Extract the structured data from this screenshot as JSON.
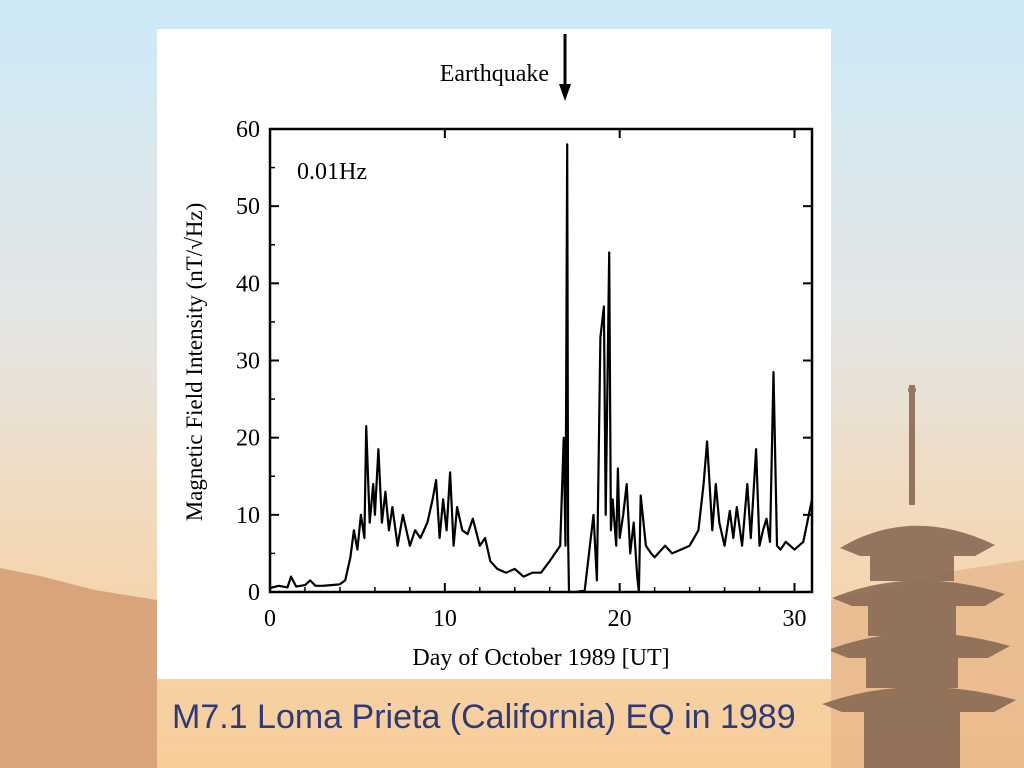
{
  "slide": {
    "caption": "M7.1 Loma Prieta (California) EQ in 1989",
    "colors": {
      "caption": "#2f3a78",
      "mountain": "#d9a47a",
      "pagoda": "#8a6a55",
      "trace": "#000000"
    }
  },
  "chart_data": {
    "type": "line",
    "xlabel": "Day of October 1989 [UT]",
    "ylabel": "Magnetic Field Intensity (nT/√Hz)",
    "frequency_label": "0.01Hz",
    "xlim": [
      0,
      31
    ],
    "ylim": [
      0,
      60
    ],
    "xticks": [
      0,
      10,
      20,
      30
    ],
    "yticks": [
      0,
      10,
      20,
      30,
      40,
      50,
      60
    ],
    "annotation": {
      "label": "Earthquake",
      "x": 17.0,
      "marker": "down-arrow"
    },
    "series": [
      {
        "x": [
          0,
          0.5,
          1,
          1.2,
          1.5,
          2,
          2.3,
          2.6,
          3,
          3.5,
          4,
          4.3,
          4.6,
          4.8,
          5.0,
          5.2,
          5.4,
          5.5,
          5.7,
          5.9,
          6.0,
          6.2,
          6.4,
          6.6,
          6.8,
          7.0,
          7.3,
          7.6,
          8.0,
          8.3,
          8.6,
          9.0,
          9.3,
          9.5,
          9.7,
          9.9,
          10.1,
          10.3,
          10.5,
          10.7,
          11.0,
          11.3,
          11.6,
          12.0,
          12.3,
          12.6,
          13.0,
          13.5,
          14.0,
          14.5,
          15.0,
          15.5,
          16.0,
          16.3,
          16.6,
          16.8,
          16.9,
          17.0,
          17.05,
          17.1,
          17.2,
          17.5,
          18.0,
          18.5,
          18.7,
          18.9,
          19.1,
          19.2,
          19.4,
          19.5,
          19.6,
          19.8,
          19.9,
          20.0,
          20.2,
          20.4,
          20.6,
          20.8,
          21.0,
          21.1,
          21.2,
          21.5,
          21.8,
          22.0,
          22.2,
          22.4,
          22.6,
          23.0,
          23.5,
          24.0,
          24.5,
          24.8,
          25.0,
          25.3,
          25.5,
          25.7,
          26.0,
          26.3,
          26.5,
          26.7,
          27.0,
          27.3,
          27.5,
          27.8,
          28.0,
          28.2,
          28.4,
          28.6,
          28.8,
          29.0,
          29.2,
          29.5,
          30.0,
          30.5,
          31.0
        ],
        "y": [
          0.5,
          0.8,
          0.6,
          2.0,
          0.7,
          0.9,
          1.5,
          0.8,
          0.8,
          0.9,
          1.0,
          1.5,
          4.5,
          8.0,
          5.5,
          10.0,
          7.0,
          21.5,
          9.0,
          14.0,
          10.0,
          18.5,
          9.0,
          13.0,
          8.0,
          11.0,
          6.0,
          10.0,
          6.0,
          8.0,
          7.0,
          9.0,
          12.0,
          14.5,
          7.0,
          12.0,
          8.0,
          15.5,
          6.0,
          11.0,
          8.0,
          7.5,
          9.5,
          6.0,
          7.0,
          4.0,
          3.0,
          2.5,
          3.0,
          2.0,
          2.5,
          2.5,
          4.0,
          5.0,
          6.0,
          20.0,
          6.0,
          58.0,
          7.0,
          0.0,
          0.0,
          0.0,
          0.2,
          10.0,
          1.5,
          33.0,
          37.0,
          10.0,
          44.0,
          8.0,
          12.0,
          6.0,
          16.0,
          7.0,
          10.0,
          14.0,
          5.0,
          9.0,
          2.0,
          0.0,
          12.5,
          6.0,
          5.0,
          4.5,
          5.0,
          5.5,
          6.0,
          5.0,
          5.5,
          6.0,
          8.0,
          14.0,
          19.5,
          8.0,
          14.0,
          9.0,
          6.0,
          10.5,
          7.0,
          11.0,
          6.0,
          14.0,
          7.0,
          18.5,
          6.0,
          8.0,
          9.5,
          6.5,
          28.5,
          6.0,
          5.5,
          6.5,
          5.5,
          6.5,
          12.0
        ]
      }
    ]
  }
}
